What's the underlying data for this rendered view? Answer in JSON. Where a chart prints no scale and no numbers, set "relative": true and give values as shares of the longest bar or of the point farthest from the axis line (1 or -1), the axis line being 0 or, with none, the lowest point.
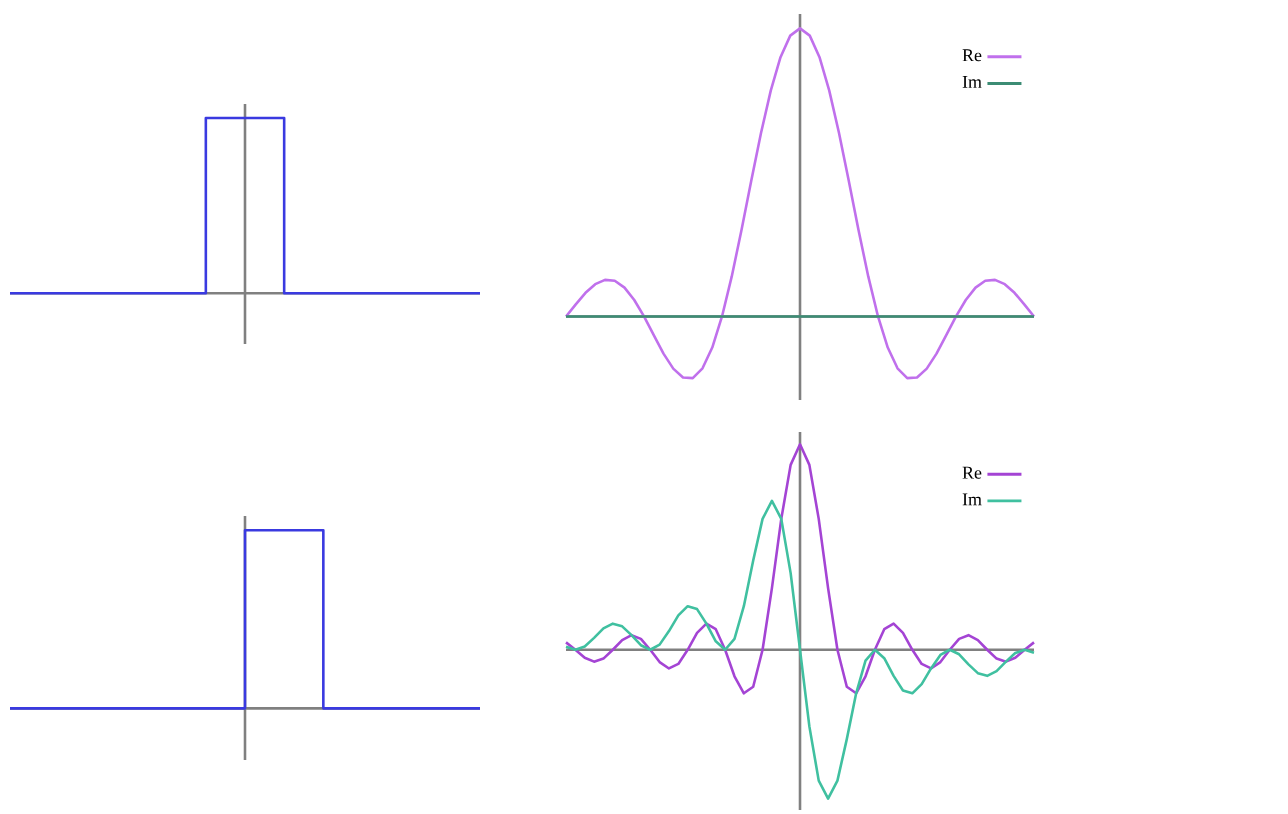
{
  "chart_data": [
    {
      "type": "step",
      "relative": true,
      "tick_labels": false,
      "categories": [
        null,
        null,
        null,
        null,
        null,
        null,
        null,
        null,
        null,
        null,
        null,
        null,
        null
      ],
      "series": [
        {
          "color": "#3a3ae0",
          "values": [
            0,
            0,
            0,
            0,
            0,
            1,
            1,
            0,
            0,
            0,
            0,
            0,
            0
          ]
        }
      ]
    },
    {
      "type": "line",
      "relative": true,
      "tick_labels": false,
      "legend": "top right",
      "categories": [
        null,
        null,
        null,
        null,
        null,
        null,
        null,
        null,
        null,
        null,
        null,
        null,
        null,
        null,
        null,
        null,
        null,
        null,
        null,
        null,
        null,
        null,
        null,
        null,
        null,
        null,
        null,
        null,
        null,
        null,
        null,
        null,
        null,
        null,
        null,
        null,
        null,
        null,
        null,
        null,
        null,
        null,
        null,
        null,
        null,
        null,
        null,
        null,
        null
      ],
      "series": [
        {
          "name": "Re",
          "color": "#c070ec",
          "values": [
            0,
            0.042,
            0.082,
            0.112,
            0.127,
            0.124,
            0.1,
            0.057,
            0,
            -0.065,
            -0.129,
            -0.181,
            -0.212,
            -0.214,
            -0.18,
            -0.108,
            0,
            0.139,
            0.3,
            0.471,
            0.637,
            0.784,
            0.9,
            0.975,
            1,
            0.975,
            0.9,
            0.784,
            0.637,
            0.471,
            0.3,
            0.139,
            0,
            -0.108,
            -0.18,
            -0.214,
            -0.212,
            -0.181,
            -0.129,
            -0.065,
            0,
            0.057,
            0.1,
            0.124,
            0.127,
            0.112,
            0.082,
            0.042,
            0
          ]
        },
        {
          "name": "Im",
          "color": "#3c8c74",
          "values": [
            0,
            0,
            0,
            0,
            0,
            0,
            0,
            0,
            0,
            0,
            0,
            0,
            0,
            0,
            0,
            0,
            0,
            0,
            0,
            0,
            0,
            0,
            0,
            0,
            0,
            0,
            0,
            0,
            0,
            0,
            0,
            0,
            0,
            0,
            0,
            0,
            0,
            0,
            0,
            0,
            0,
            0,
            0,
            0,
            0,
            0,
            0,
            0,
            0
          ]
        }
      ]
    },
    {
      "type": "step",
      "relative": true,
      "tick_labels": false,
      "categories": [
        null,
        null,
        null,
        null,
        null,
        null,
        null,
        null,
        null,
        null,
        null,
        null,
        null
      ],
      "series": [
        {
          "color": "#3a3ae0",
          "values": [
            0,
            0,
            0,
            0,
            0,
            0,
            1,
            1,
            0,
            0,
            0,
            0,
            0
          ]
        }
      ]
    },
    {
      "type": "line",
      "relative": true,
      "tick_labels": false,
      "legend": "top right",
      "categories": [
        null,
        null,
        null,
        null,
        null,
        null,
        null,
        null,
        null,
        null,
        null,
        null,
        null,
        null,
        null,
        null,
        null,
        null,
        null,
        null,
        null,
        null,
        null,
        null,
        null,
        null,
        null,
        null,
        null,
        null,
        null,
        null,
        null,
        null,
        null,
        null,
        null,
        null,
        null,
        null,
        null,
        null,
        null,
        null,
        null,
        null,
        null,
        null,
        null,
        null,
        null
      ],
      "series": [
        {
          "name": "Re",
          "color": "#a444d4",
          "values": [
            0.036,
            0,
            -0.039,
            -0.058,
            -0.043,
            0,
            0.047,
            0.071,
            0.053,
            0,
            -0.06,
            -0.091,
            -0.069,
            0,
            0.082,
            0.127,
            0.1,
            0,
            -0.129,
            -0.212,
            -0.18,
            0,
            0.3,
            0.637,
            0.9,
            1,
            0.9,
            0.637,
            0.3,
            0,
            -0.18,
            -0.212,
            -0.129,
            0,
            0.1,
            0.127,
            0.082,
            0,
            -0.069,
            -0.091,
            -0.06,
            0,
            0.053,
            0.071,
            0.047,
            0,
            -0.043,
            -0.058,
            -0.039,
            0,
            0.036
          ]
        },
        {
          "name": "Im",
          "color": "#40c0a0",
          "values": [
            0.015,
            0,
            0.016,
            0.058,
            0.104,
            0.127,
            0.114,
            0.071,
            0.022,
            0,
            0.025,
            0.091,
            0.167,
            0.212,
            0.198,
            0.127,
            0.041,
            0,
            0.053,
            0.212,
            0.435,
            0.637,
            0.725,
            0.637,
            0.373,
            0,
            -0.373,
            -0.637,
            -0.725,
            -0.637,
            -0.435,
            -0.212,
            -0.053,
            0,
            -0.041,
            -0.127,
            -0.198,
            -0.212,
            -0.167,
            -0.091,
            -0.025,
            0,
            -0.022,
            -0.071,
            -0.114,
            -0.127,
            -0.104,
            -0.058,
            -0.016,
            0,
            -0.015
          ]
        }
      ]
    }
  ]
}
